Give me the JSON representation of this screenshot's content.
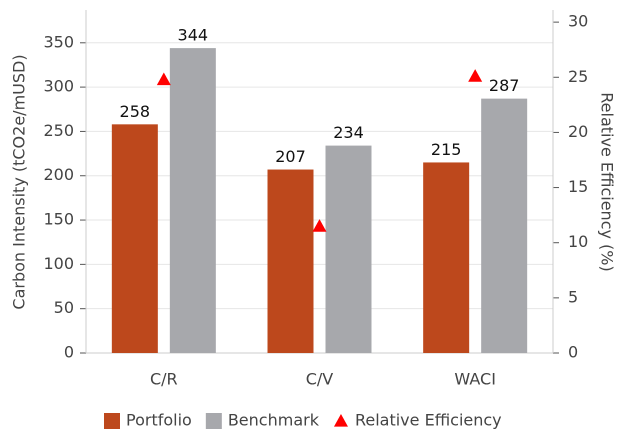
{
  "chart_data": {
    "type": "bar",
    "categories": [
      "C/R",
      "C/V",
      "WACI"
    ],
    "series": [
      {
        "name": "Portfolio",
        "color": "#bd481c",
        "values": [
          258,
          207,
          215
        ]
      },
      {
        "name": "Benchmark",
        "color": "#a7a8ac",
        "values": [
          344,
          234,
          287
        ]
      },
      {
        "name": "Relative Efficiency",
        "color": "#ff0000",
        "values": [
          24.8,
          11.5,
          25.1
        ],
        "axis": "y2",
        "marker": "triangle"
      }
    ],
    "ylabel": "Carbon Intensity (tCO2e/mUSD)",
    "y2label": "Relative Efficiency (%)",
    "ylim": [
      0,
      387
    ],
    "yticks": [
      0,
      50,
      100,
      150,
      200,
      250,
      300,
      350
    ],
    "y2lim": [
      0,
      31.1
    ],
    "y2ticks": [
      0,
      5,
      10,
      15,
      20,
      25,
      30
    ],
    "grid": true,
    "legend": "bottom"
  }
}
